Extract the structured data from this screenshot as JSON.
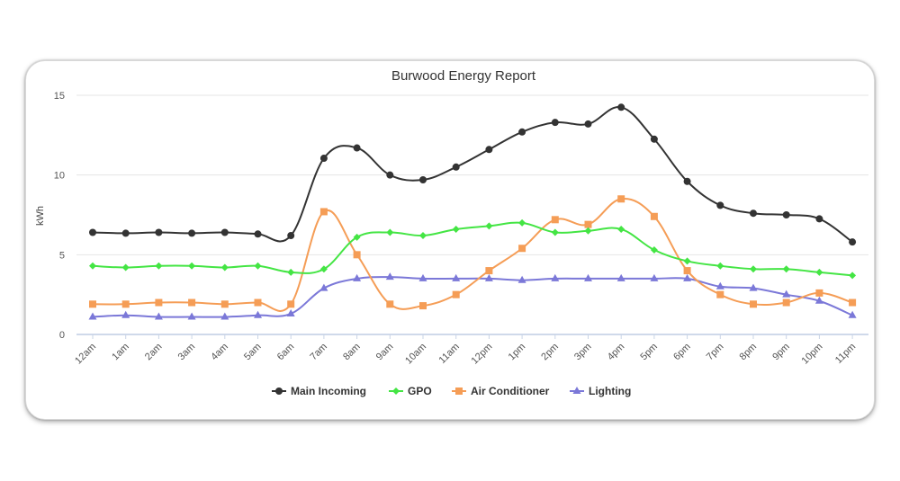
{
  "chart_data": {
    "type": "line",
    "title": "Burwood Energy Report",
    "xlabel": "",
    "ylabel": "kWh",
    "ylim": [
      0,
      15
    ],
    "yticks": [
      0,
      5,
      10,
      15
    ],
    "grid": true,
    "legend_position": "bottom",
    "categories": [
      "12am",
      "1am",
      "2am",
      "3am",
      "4am",
      "5am",
      "6am",
      "7am",
      "8am",
      "9am",
      "10am",
      "11am",
      "12pm",
      "1pm",
      "2pm",
      "3pm",
      "4pm",
      "5pm",
      "6pm",
      "7pm",
      "8pm",
      "9pm",
      "10pm",
      "11pm"
    ],
    "series": [
      {
        "name": "Main Incoming",
        "color": "#333333",
        "marker": "circle",
        "values": [
          6.4,
          6.35,
          6.4,
          6.35,
          6.4,
          6.3,
          6.2,
          11.05,
          11.7,
          10.0,
          9.7,
          10.5,
          11.6,
          12.7,
          13.3,
          13.2,
          14.25,
          12.25,
          9.6,
          8.1,
          7.6,
          7.5,
          7.25,
          5.8
        ]
      },
      {
        "name": "GPO",
        "color": "#44e544",
        "marker": "diamond",
        "values": [
          4.3,
          4.2,
          4.3,
          4.3,
          4.2,
          4.3,
          3.9,
          4.1,
          6.1,
          6.4,
          6.2,
          6.6,
          6.8,
          7.0,
          6.4,
          6.5,
          6.6,
          5.3,
          4.6,
          4.3,
          4.1,
          4.1,
          3.9,
          3.7
        ]
      },
      {
        "name": "Air Conditioner",
        "color": "#f59d56",
        "marker": "square",
        "values": [
          1.9,
          1.9,
          2.0,
          2.0,
          1.9,
          2.0,
          1.9,
          7.7,
          5.0,
          1.9,
          1.8,
          2.5,
          4.0,
          5.4,
          7.2,
          6.9,
          8.5,
          7.4,
          4.0,
          2.5,
          1.9,
          2.0,
          2.6,
          2.0
        ]
      },
      {
        "name": "Lighting",
        "color": "#7b78d8",
        "marker": "triangle",
        "values": [
          1.1,
          1.2,
          1.1,
          1.1,
          1.1,
          1.2,
          1.3,
          2.9,
          3.5,
          3.6,
          3.5,
          3.5,
          3.5,
          3.4,
          3.5,
          3.5,
          3.5,
          3.5,
          3.5,
          3.0,
          2.9,
          2.5,
          2.1,
          1.2
        ]
      }
    ]
  }
}
